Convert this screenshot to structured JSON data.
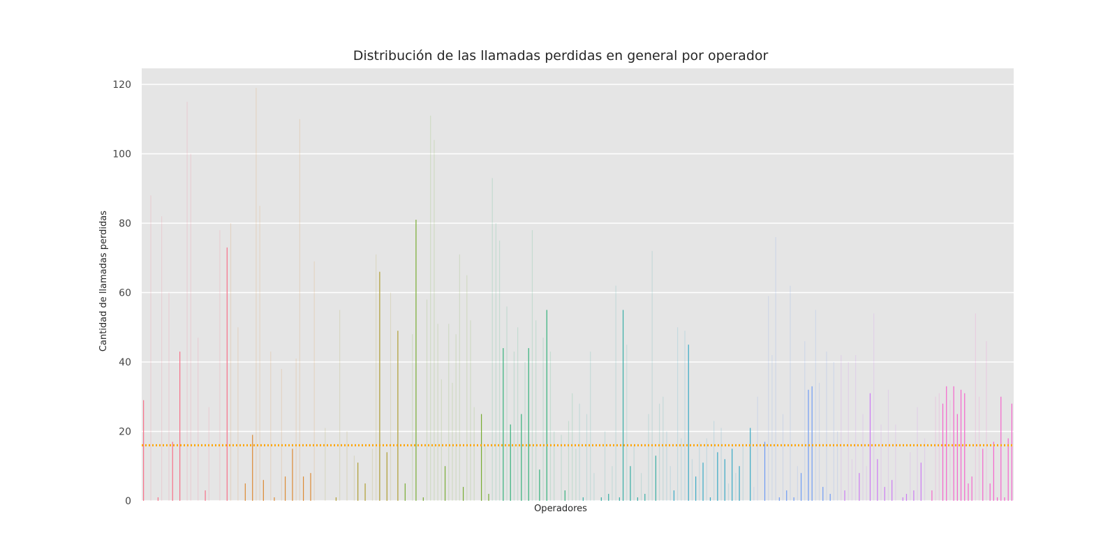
{
  "chart_data": {
    "type": "bar",
    "title": "Distribución de las llamadas perdidas en general por operador",
    "xlabel": "Operadores",
    "ylabel": "Cantidad de llamadas perdidas",
    "ylim": [
      0,
      125
    ],
    "yticks": [
      0,
      20,
      40,
      60,
      80,
      100,
      120
    ],
    "grid": true,
    "reference_line": {
      "value": 16,
      "color": "#FFA500",
      "style": "dotted"
    },
    "colors": {
      "background": "#E5E5E5",
      "grid": "#FFFFFF",
      "palette": [
        "#F77189",
        "#DC8932",
        "#AE9D31",
        "#77AB31",
        "#33B07A",
        "#36ADA4",
        "#38A9C5",
        "#6E9BF4",
        "#CC7AF4",
        "#F565CC"
      ]
    },
    "n_categories": 240,
    "bars": [
      {
        "i": 0,
        "v": 29
      },
      {
        "i": 2,
        "v": 88,
        "faded": true
      },
      {
        "i": 4,
        "v": 1
      },
      {
        "i": 5,
        "v": 82,
        "faded": true
      },
      {
        "i": 7,
        "v": 60,
        "faded": true
      },
      {
        "i": 8,
        "v": 17
      },
      {
        "i": 10,
        "v": 43
      },
      {
        "i": 12,
        "v": 115,
        "faded": true
      },
      {
        "i": 13,
        "v": 100,
        "faded": true
      },
      {
        "i": 15,
        "v": 47,
        "faded": true
      },
      {
        "i": 17,
        "v": 3
      },
      {
        "i": 18,
        "v": 27,
        "faded": true
      },
      {
        "i": 21,
        "v": 78,
        "faded": true
      },
      {
        "i": 23,
        "v": 73
      },
      {
        "i": 24,
        "v": 80,
        "faded": true
      },
      {
        "i": 26,
        "v": 50,
        "faded": true
      },
      {
        "i": 28,
        "v": 5
      },
      {
        "i": 30,
        "v": 19
      },
      {
        "i": 31,
        "v": 119,
        "faded": true
      },
      {
        "i": 32,
        "v": 85,
        "faded": true
      },
      {
        "i": 33,
        "v": 6
      },
      {
        "i": 35,
        "v": 43,
        "faded": true
      },
      {
        "i": 36,
        "v": 1
      },
      {
        "i": 38,
        "v": 38,
        "faded": true
      },
      {
        "i": 39,
        "v": 7
      },
      {
        "i": 41,
        "v": 15
      },
      {
        "i": 42,
        "v": 41,
        "faded": true
      },
      {
        "i": 43,
        "v": 110,
        "faded": true
      },
      {
        "i": 44,
        "v": 7
      },
      {
        "i": 46,
        "v": 8
      },
      {
        "i": 47,
        "v": 69,
        "faded": true
      },
      {
        "i": 50,
        "v": 21,
        "faded": true
      },
      {
        "i": 53,
        "v": 1
      },
      {
        "i": 54,
        "v": 55,
        "faded": true
      },
      {
        "i": 56,
        "v": 20,
        "faded": true
      },
      {
        "i": 58,
        "v": 13,
        "faded": true
      },
      {
        "i": 59,
        "v": 11
      },
      {
        "i": 61,
        "v": 5
      },
      {
        "i": 63,
        "v": 15,
        "faded": true
      },
      {
        "i": 64,
        "v": 71,
        "faded": true
      },
      {
        "i": 65,
        "v": 66
      },
      {
        "i": 67,
        "v": 14
      },
      {
        "i": 68,
        "v": 60,
        "faded": true
      },
      {
        "i": 70,
        "v": 49
      },
      {
        "i": 72,
        "v": 5
      },
      {
        "i": 74,
        "v": 48,
        "faded": true
      },
      {
        "i": 75,
        "v": 81
      },
      {
        "i": 77,
        "v": 1
      },
      {
        "i": 78,
        "v": 58,
        "faded": true
      },
      {
        "i": 79,
        "v": 111,
        "faded": true
      },
      {
        "i": 80,
        "v": 104,
        "faded": true
      },
      {
        "i": 81,
        "v": 51,
        "faded": true
      },
      {
        "i": 82,
        "v": 35,
        "faded": true
      },
      {
        "i": 83,
        "v": 10
      },
      {
        "i": 84,
        "v": 51,
        "faded": true
      },
      {
        "i": 85,
        "v": 34,
        "faded": true
      },
      {
        "i": 86,
        "v": 48,
        "faded": true
      },
      {
        "i": 87,
        "v": 71,
        "faded": true
      },
      {
        "i": 88,
        "v": 4
      },
      {
        "i": 89,
        "v": 65,
        "faded": true
      },
      {
        "i": 90,
        "v": 52,
        "faded": true
      },
      {
        "i": 91,
        "v": 27,
        "faded": true
      },
      {
        "i": 93,
        "v": 25
      },
      {
        "i": 94,
        "v": 16,
        "faded": true
      },
      {
        "i": 95,
        "v": 2
      },
      {
        "i": 96,
        "v": 93,
        "faded": true
      },
      {
        "i": 97,
        "v": 80,
        "faded": true
      },
      {
        "i": 98,
        "v": 75,
        "faded": true
      },
      {
        "i": 99,
        "v": 44
      },
      {
        "i": 100,
        "v": 56,
        "faded": true
      },
      {
        "i": 101,
        "v": 22
      },
      {
        "i": 102,
        "v": 43,
        "faded": true
      },
      {
        "i": 103,
        "v": 50,
        "faded": true
      },
      {
        "i": 104,
        "v": 25
      },
      {
        "i": 105,
        "v": 40,
        "faded": true
      },
      {
        "i": 106,
        "v": 44
      },
      {
        "i": 107,
        "v": 78,
        "faded": true
      },
      {
        "i": 108,
        "v": 52,
        "faded": true
      },
      {
        "i": 109,
        "v": 9
      },
      {
        "i": 110,
        "v": 47,
        "faded": true
      },
      {
        "i": 111,
        "v": 55
      },
      {
        "i": 112,
        "v": 43,
        "faded": true
      },
      {
        "i": 113,
        "v": 20,
        "faded": true
      },
      {
        "i": 115,
        "v": 19,
        "faded": true
      },
      {
        "i": 116,
        "v": 3
      },
      {
        "i": 117,
        "v": 23,
        "faded": true
      },
      {
        "i": 118,
        "v": 31,
        "faded": true
      },
      {
        "i": 119,
        "v": 15,
        "faded": true
      },
      {
        "i": 120,
        "v": 28,
        "faded": true
      },
      {
        "i": 121,
        "v": 1
      },
      {
        "i": 122,
        "v": 25,
        "faded": true
      },
      {
        "i": 123,
        "v": 43,
        "faded": true
      },
      {
        "i": 124,
        "v": 8,
        "faded": true
      },
      {
        "i": 126,
        "v": 1
      },
      {
        "i": 127,
        "v": 20,
        "faded": true
      },
      {
        "i": 128,
        "v": 2
      },
      {
        "i": 129,
        "v": 10,
        "faded": true
      },
      {
        "i": 130,
        "v": 62,
        "faded": true
      },
      {
        "i": 131,
        "v": 1
      },
      {
        "i": 132,
        "v": 55
      },
      {
        "i": 133,
        "v": 45,
        "faded": true
      },
      {
        "i": 134,
        "v": 10
      },
      {
        "i": 135,
        "v": 16,
        "faded": true
      },
      {
        "i": 136,
        "v": 1
      },
      {
        "i": 137,
        "v": 8,
        "faded": true
      },
      {
        "i": 138,
        "v": 2
      },
      {
        "i": 139,
        "v": 25,
        "faded": true
      },
      {
        "i": 140,
        "v": 72,
        "faded": true
      },
      {
        "i": 141,
        "v": 13
      },
      {
        "i": 142,
        "v": 28,
        "faded": true
      },
      {
        "i": 143,
        "v": 30,
        "faded": true
      },
      {
        "i": 144,
        "v": 20,
        "faded": true
      },
      {
        "i": 145,
        "v": 10,
        "faded": true
      },
      {
        "i": 146,
        "v": 3
      },
      {
        "i": 147,
        "v": 50,
        "faded": true
      },
      {
        "i": 148,
        "v": 18,
        "faded": true
      },
      {
        "i": 149,
        "v": 49,
        "faded": true
      },
      {
        "i": 150,
        "v": 45
      },
      {
        "i": 151,
        "v": 12,
        "faded": true
      },
      {
        "i": 152,
        "v": 7
      },
      {
        "i": 153,
        "v": 17,
        "faded": true
      },
      {
        "i": 154,
        "v": 11
      },
      {
        "i": 155,
        "v": 18,
        "faded": true
      },
      {
        "i": 156,
        "v": 1
      },
      {
        "i": 157,
        "v": 23,
        "faded": true
      },
      {
        "i": 158,
        "v": 14
      },
      {
        "i": 159,
        "v": 21,
        "faded": true
      },
      {
        "i": 160,
        "v": 12
      },
      {
        "i": 161,
        "v": 5,
        "faded": true
      },
      {
        "i": 162,
        "v": 15
      },
      {
        "i": 163,
        "v": 8,
        "faded": true
      },
      {
        "i": 164,
        "v": 10
      },
      {
        "i": 165,
        "v": 16,
        "faded": true
      },
      {
        "i": 167,
        "v": 21
      },
      {
        "i": 168,
        "v": 4,
        "faded": true
      },
      {
        "i": 169,
        "v": 30,
        "faded": true
      },
      {
        "i": 171,
        "v": 17
      },
      {
        "i": 172,
        "v": 59,
        "faded": true
      },
      {
        "i": 173,
        "v": 42,
        "faded": true
      },
      {
        "i": 174,
        "v": 76,
        "faded": true
      },
      {
        "i": 175,
        "v": 1
      },
      {
        "i": 176,
        "v": 25,
        "faded": true
      },
      {
        "i": 177,
        "v": 3
      },
      {
        "i": 178,
        "v": 62,
        "faded": true
      },
      {
        "i": 179,
        "v": 1
      },
      {
        "i": 180,
        "v": 10,
        "faded": true
      },
      {
        "i": 181,
        "v": 8
      },
      {
        "i": 182,
        "v": 46,
        "faded": true
      },
      {
        "i": 183,
        "v": 32
      },
      {
        "i": 184,
        "v": 33
      },
      {
        "i": 185,
        "v": 55,
        "faded": true
      },
      {
        "i": 186,
        "v": 34,
        "faded": true
      },
      {
        "i": 187,
        "v": 4
      },
      {
        "i": 188,
        "v": 43,
        "faded": true
      },
      {
        "i": 189,
        "v": 2
      },
      {
        "i": 190,
        "v": 40,
        "faded": true
      },
      {
        "i": 191,
        "v": 20,
        "faded": true
      },
      {
        "i": 192,
        "v": 42,
        "faded": true
      },
      {
        "i": 193,
        "v": 3
      },
      {
        "i": 194,
        "v": 40,
        "faded": true
      },
      {
        "i": 195,
        "v": 12,
        "faded": true
      },
      {
        "i": 196,
        "v": 42,
        "faded": true
      },
      {
        "i": 197,
        "v": 8
      },
      {
        "i": 198,
        "v": 25,
        "faded": true
      },
      {
        "i": 199,
        "v": 10,
        "faded": true
      },
      {
        "i": 200,
        "v": 31
      },
      {
        "i": 201,
        "v": 54,
        "faded": true
      },
      {
        "i": 202,
        "v": 12
      },
      {
        "i": 203,
        "v": 22,
        "faded": true
      },
      {
        "i": 204,
        "v": 4
      },
      {
        "i": 205,
        "v": 32,
        "faded": true
      },
      {
        "i": 206,
        "v": 6
      },
      {
        "i": 207,
        "v": 22,
        "faded": true
      },
      {
        "i": 209,
        "v": 1
      },
      {
        "i": 210,
        "v": 2
      },
      {
        "i": 211,
        "v": 14,
        "faded": true
      },
      {
        "i": 212,
        "v": 3
      },
      {
        "i": 213,
        "v": 27,
        "faded": true
      },
      {
        "i": 214,
        "v": 11
      },
      {
        "i": 215,
        "v": 18,
        "faded": true
      },
      {
        "i": 217,
        "v": 3
      },
      {
        "i": 218,
        "v": 30,
        "faded": true
      },
      {
        "i": 219,
        "v": 31,
        "faded": true
      },
      {
        "i": 220,
        "v": 28
      },
      {
        "i": 221,
        "v": 33
      },
      {
        "i": 222,
        "v": 29,
        "faded": true
      },
      {
        "i": 223,
        "v": 33
      },
      {
        "i": 224,
        "v": 25
      },
      {
        "i": 225,
        "v": 32
      },
      {
        "i": 226,
        "v": 31
      },
      {
        "i": 227,
        "v": 5
      },
      {
        "i": 228,
        "v": 7
      },
      {
        "i": 229,
        "v": 54,
        "faded": true
      },
      {
        "i": 230,
        "v": 30,
        "faded": true
      },
      {
        "i": 231,
        "v": 15
      },
      {
        "i": 232,
        "v": 46,
        "faded": true
      },
      {
        "i": 233,
        "v": 5
      },
      {
        "i": 234,
        "v": 17
      },
      {
        "i": 235,
        "v": 1
      },
      {
        "i": 236,
        "v": 30
      },
      {
        "i": 237,
        "v": 1
      },
      {
        "i": 238,
        "v": 18
      },
      {
        "i": 239,
        "v": 28
      }
    ]
  }
}
